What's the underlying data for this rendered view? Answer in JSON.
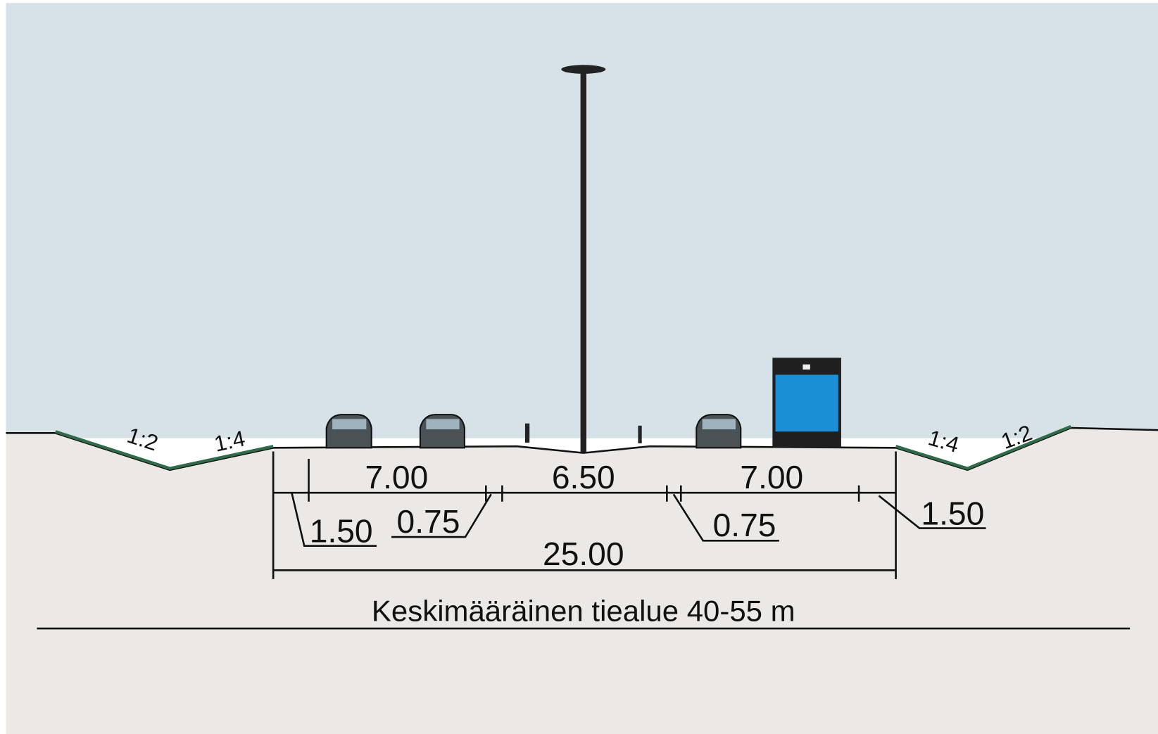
{
  "slopes": [
    "1:2",
    "1:4",
    "1:4",
    "1:2"
  ],
  "dimensions": {
    "lane_left": "7.00",
    "median": "6.50",
    "lane_right": "7.00",
    "shoulder_left": "1.50",
    "edge_left": "0.75",
    "edge_right": "0.75",
    "shoulder_right": "1.50",
    "total": "25.00"
  },
  "caption": "Keskimääräinen tiealue 40-55 m"
}
